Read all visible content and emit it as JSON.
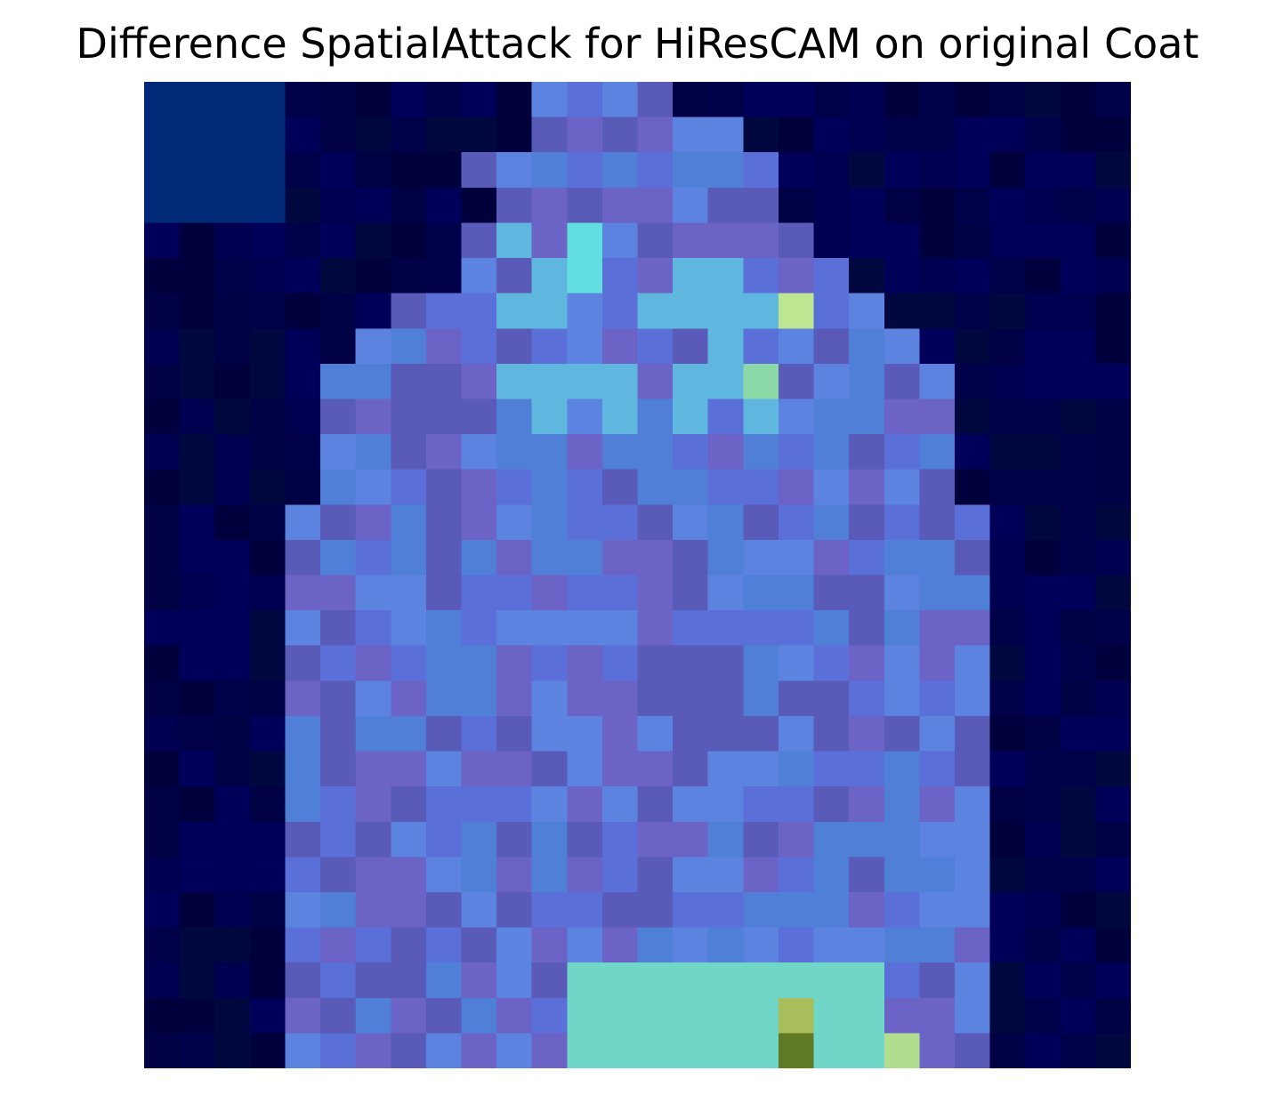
{
  "title": "Difference SpatialAttack for HiResCAM on original Coat",
  "image": {
    "subject": "coat-heatmap-overlay",
    "grid_size": 28,
    "colormap": "jet",
    "background_color": "#00004a",
    "coat_base_color": "#5c5cc4",
    "hot_regions": [
      {
        "row": 6,
        "col": 18,
        "color": "#bde692"
      },
      {
        "row": 4,
        "col": 12,
        "color": "#62dde0"
      },
      {
        "row": 5,
        "col": 12,
        "color": "#62dde0"
      },
      {
        "row": 8,
        "col": 17,
        "color": "#8ad9a6"
      },
      {
        "row": 27,
        "col": 21,
        "color": "#b1de8e"
      },
      {
        "row": 26,
        "col": 18,
        "color": "#a9be5a"
      },
      {
        "row": 27,
        "col": 18,
        "color": "#5f7a22"
      }
    ]
  }
}
